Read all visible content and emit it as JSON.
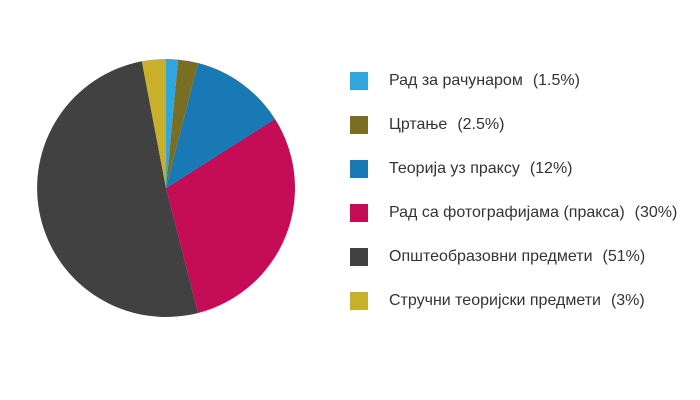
{
  "background": "#ffffff",
  "text_color": "#333333",
  "chart_data": {
    "type": "pie",
    "title": "",
    "legend_position": "right",
    "start_angle_deg": 0,
    "direction": "clockwise",
    "labels": [
      "Рад за рачунаром",
      "Цртање",
      "Теорија уз праксу",
      "Рад са фотографијама (пракса)",
      "Општеобразовни предмети",
      "Стручни теоријски предмети"
    ],
    "values": [
      1.5,
      2.5,
      12,
      30,
      51,
      3
    ],
    "percent_display": [
      "(1.5%)",
      "(2.5%)",
      "(12%)",
      "(30%)",
      "(51%)",
      "(3%)"
    ],
    "colors": [
      "#2FA6DD",
      "#7A6E25",
      "#1879B5",
      "#C40D56",
      "#414141",
      "#C9B02B"
    ]
  },
  "legend": {
    "items": [
      {
        "label": "Рад за рачунаром",
        "pct": "(1.5%)",
        "color": "#2FA6DD"
      },
      {
        "label": "Цртање",
        "pct": "(2.5%)",
        "color": "#7A6E25"
      },
      {
        "label": "Теорија уз праксу",
        "pct": "(12%)",
        "color": "#1879B5"
      },
      {
        "label": "Рад са фотографијама (пракса)",
        "pct": "(30%)",
        "color": "#C40D56"
      },
      {
        "label": "Општеобразовни предмети",
        "pct": "(51%)",
        "color": "#414141"
      },
      {
        "label": "Стручни теоријски предмети",
        "pct": "(3%)",
        "color": "#C9B02B"
      }
    ]
  }
}
